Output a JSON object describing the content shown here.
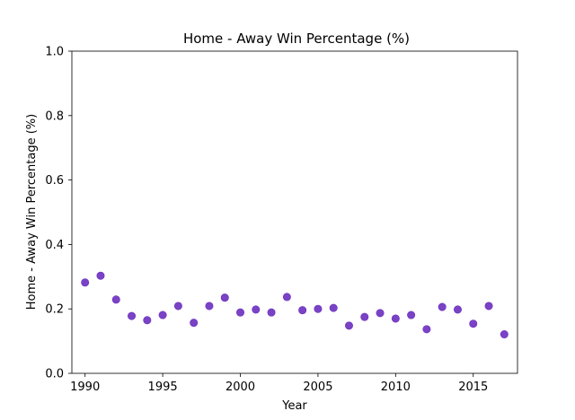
{
  "chart_data": {
    "type": "scatter",
    "title": "Home - Away Win Percentage (%)",
    "xlabel": "Year",
    "ylabel": "Home - Away Win Percentage (%)",
    "xlim": [
      1989.15,
      2017.85
    ],
    "ylim": [
      0.0,
      1.0
    ],
    "xticks": [
      1990,
      1995,
      2000,
      2005,
      2010,
      2015
    ],
    "xtick_labels": [
      "1990",
      "1995",
      "2000",
      "2005",
      "2010",
      "2015"
    ],
    "yticks": [
      0.0,
      0.2,
      0.4,
      0.6,
      0.8,
      1.0
    ],
    "ytick_labels": [
      "0.0",
      "0.2",
      "0.4",
      "0.6",
      "0.8",
      "1.0"
    ],
    "grid": false,
    "legend": "none",
    "marker_color": "#6b2fbf",
    "series": [
      {
        "name": "Home - Away Win Percentage",
        "x": [
          1990,
          1991,
          1992,
          1993,
          1994,
          1995,
          1996,
          1997,
          1998,
          1999,
          2000,
          2001,
          2002,
          2003,
          2004,
          2005,
          2006,
          2007,
          2008,
          2009,
          2010,
          2011,
          2012,
          2013,
          2014,
          2015,
          2016,
          2017
        ],
        "y": [
          0.282,
          0.303,
          0.229,
          0.178,
          0.165,
          0.181,
          0.209,
          0.157,
          0.209,
          0.235,
          0.189,
          0.198,
          0.189,
          0.237,
          0.196,
          0.2,
          0.203,
          0.148,
          0.175,
          0.187,
          0.17,
          0.181,
          0.137,
          0.206,
          0.198,
          0.154,
          0.209,
          0.121
        ]
      }
    ]
  }
}
